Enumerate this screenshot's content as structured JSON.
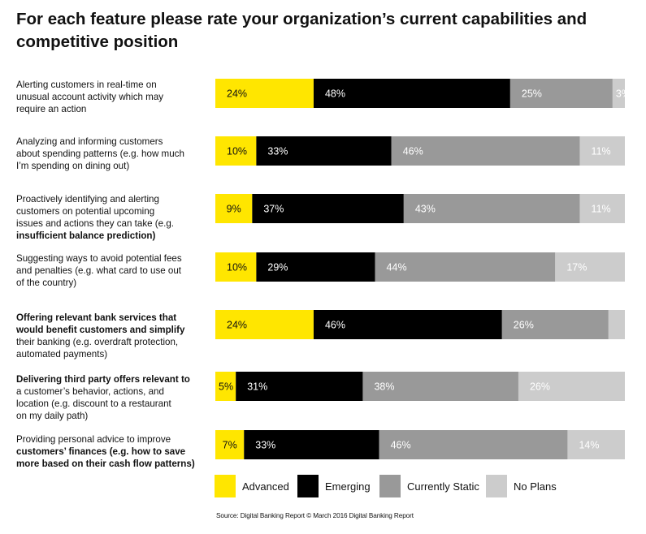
{
  "title": "For each feature please rate your organization’s current capabilities and competitive position",
  "source": "Source: Digital Banking Report © March 2016 Digital Banking Report",
  "colors": {
    "Advanced": "#ffe600",
    "Emerging": "#000000",
    "Currently Static": "#999999",
    "No Plans": "#cccccc"
  },
  "legend": [
    {
      "label": "Advanced",
      "color": "#ffe600"
    },
    {
      "label": "Emerging",
      "color": "#000000"
    },
    {
      "label": "Currently Static",
      "color": "#999999"
    },
    {
      "label": "No Plans",
      "color": "#cccccc"
    }
  ],
  "chart_data": {
    "type": "bar",
    "stacked": true,
    "orientation": "horizontal",
    "title": "For each feature please rate your organization’s current capabilities and competitive position",
    "categories": [
      "Alerting customers in real-time on unusual account activity which may require an action",
      "Analyzing and informing customers about spending patterns (e.g. how much I’m spending on dining out)",
      "Proactively identifying and alerting customers on potential upcoming issues and actions they can take (e.g. insufficient balance prediction)",
      "Suggesting ways to avoid potential fees and penalties (e.g. what card to use out of the country)",
      "Offering relevant bank services that would benefit customers and simplify their banking (e.g. overdraft protection, automated payments)",
      "Delivering third party offers relevant to a customer’s behavior, actions, and location (e.g. discount to a restaurant on my daily path)",
      "Providing personal advice to improve customers’ finances (e.g. how to save more based on their cash flow patterns)"
    ],
    "category_lines": [
      [
        "Alerting customers in real-time on",
        "unusual account activity which may",
        "require an action"
      ],
      [
        "Analyzing and informing customers",
        "about spending patterns (e.g. how much",
        "I’m spending on dining out)"
      ],
      [
        "Proactively identifying and alerting",
        "customers on potential upcoming",
        "issues and actions they can take (e.g.",
        "insufficient balance prediction)"
      ],
      [
        "Suggesting ways to avoid potential fees",
        "and penalties (e.g. what card to use out",
        "of the country)"
      ],
      [
        "Offering relevant bank services that",
        "would benefit customers and simplify",
        "their banking (e.g. overdraft protection,",
        "automated payments)"
      ],
      [
        "Delivering third party offers relevant to",
        "a customer’s behavior, actions, and",
        "location (e.g. discount to a restaurant",
        "on my daily path)"
      ],
      [
        "Providing personal advice to improve",
        "customers’ finances (e.g. how to save",
        "more based on their cash flow patterns)"
      ]
    ],
    "series": [
      {
        "name": "Advanced",
        "values": [
          24,
          10,
          9,
          10,
          24,
          5,
          7
        ],
        "labels": [
          "24%",
          "10%",
          "9%",
          "10%",
          "24%",
          "5%",
          "7%"
        ]
      },
      {
        "name": "Emerging",
        "values": [
          48,
          33,
          37,
          29,
          46,
          31,
          33
        ],
        "labels": [
          "48%",
          "33%",
          "37%",
          "29%",
          "46%",
          "31%",
          "33%"
        ]
      },
      {
        "name": "Currently Static",
        "values": [
          25,
          46,
          43,
          44,
          26,
          38,
          46
        ],
        "labels": [
          "25%",
          "46%",
          "43%",
          "44%",
          "26%",
          "38%",
          "46%"
        ]
      },
      {
        "name": "No Plans",
        "values": [
          3,
          11,
          11,
          17,
          4,
          26,
          14
        ],
        "labels": [
          "3%",
          "11%",
          "11%",
          "17%",
          "",
          "26%",
          "14%"
        ]
      }
    ],
    "xlim": [
      0,
      100
    ],
    "grid": false,
    "legend_position": "bottom"
  }
}
